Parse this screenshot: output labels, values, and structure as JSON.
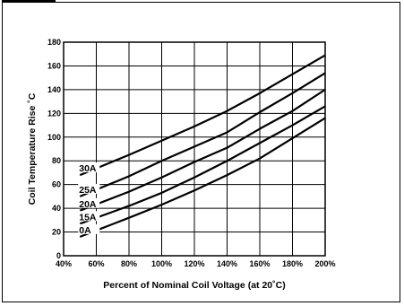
{
  "chart_data": {
    "type": "line",
    "title": "",
    "xlabel": "Percent of Nominal Coil Voltage (at 20˚C)",
    "ylabel": "Coil Temperature Rise ˚C",
    "xlim": [
      40,
      200
    ],
    "ylim": [
      0,
      180
    ],
    "xticks": [
      40,
      60,
      80,
      100,
      120,
      140,
      160,
      180,
      200
    ],
    "xtick_labels": [
      "40%",
      "60%",
      "80%",
      "100%",
      "120%",
      "140%",
      "160%",
      "180%",
      "200%"
    ],
    "yticks": [
      0,
      20,
      40,
      60,
      80,
      100,
      120,
      140,
      160,
      180
    ],
    "ytick_labels": [
      "0",
      "20",
      "40",
      "60",
      "80",
      "100",
      "120",
      "140",
      "160",
      "180"
    ],
    "grid": true,
    "legend": "inline labels",
    "series": [
      {
        "name": "30A",
        "x": [
          50,
          80,
          100,
          120,
          140,
          160,
          180,
          200
        ],
        "y": [
          68,
          85,
          97,
          109,
          122,
          137,
          153,
          169
        ]
      },
      {
        "name": "25A",
        "x": [
          50,
          80,
          100,
          120,
          140,
          160,
          180,
          200
        ],
        "y": [
          50,
          67,
          80,
          92,
          104,
          121,
          137,
          154
        ]
      },
      {
        "name": "20A",
        "x": [
          50,
          80,
          100,
          120,
          140,
          160,
          180,
          200
        ],
        "y": [
          38,
          54,
          66,
          79,
          91,
          107,
          122,
          140
        ]
      },
      {
        "name": "15A",
        "x": [
          50,
          80,
          100,
          120,
          140,
          160,
          180,
          200
        ],
        "y": [
          27,
          42,
          53,
          66,
          80,
          95,
          110,
          126
        ]
      },
      {
        "name": "0A",
        "x": [
          50,
          80,
          100,
          120,
          140,
          160,
          180,
          200
        ],
        "y": [
          16,
          32,
          43,
          55,
          68,
          82,
          99,
          116
        ]
      }
    ]
  }
}
